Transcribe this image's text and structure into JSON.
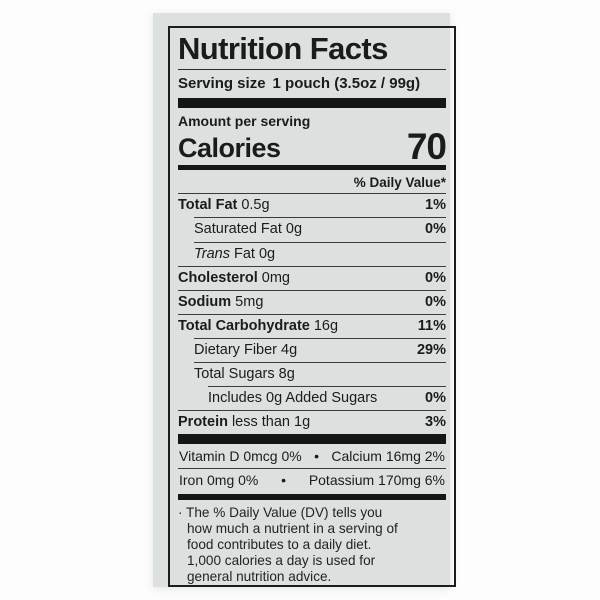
{
  "label": {
    "title": "Nutrition Facts",
    "serving": {
      "label": "Serving size",
      "value": "1 pouch (3.5oz / 99g)"
    },
    "amount_per_serving": "Amount per serving",
    "calories": {
      "label": "Calories",
      "value": "70"
    },
    "daily_value_header": "% Daily Value*",
    "nutrients": [
      {
        "bold": "Total Fat",
        "italic": "",
        "rest": "0.5g",
        "dv": "1%"
      },
      {
        "bold": "",
        "italic": "",
        "rest": "Saturated Fat 0g",
        "dv": "0%"
      },
      {
        "bold": "",
        "italic": "Trans",
        "rest": "Fat 0g",
        "dv": ""
      },
      {
        "bold": "Cholesterol",
        "italic": "",
        "rest": "0mg",
        "dv": "0%"
      },
      {
        "bold": "Sodium",
        "italic": "",
        "rest": "5mg",
        "dv": "0%"
      },
      {
        "bold": "Total Carbohydrate",
        "italic": "",
        "rest": "16g",
        "dv": "11%"
      },
      {
        "bold": "",
        "italic": "",
        "rest": "Dietary Fiber 4g",
        "dv": "29%"
      },
      {
        "bold": "",
        "italic": "",
        "rest": "Total Sugars 8g",
        "dv": ""
      },
      {
        "bold": "",
        "italic": "",
        "rest": "Includes 0g Added Sugars",
        "dv": "0%"
      },
      {
        "bold": "Protein",
        "italic": "",
        "rest": "less than 1g",
        "dv": "3%"
      }
    ],
    "micronutrients": [
      {
        "left": "Vitamin D 0mcg 0%",
        "bullet": "•",
        "right": "Calcium 16mg 2%"
      },
      {
        "left": "Iron 0mg 0%",
        "bullet": "•",
        "right": "Potassium 170mg 6%"
      }
    ],
    "footnote_lines": [
      "· The % Daily Value (DV) tells you",
      "how much a nutrient in a serving of",
      "food contributes to a daily diet.",
      "1,000 calories a day is used for",
      "general nutrition advice."
    ],
    "colors": {
      "label_background": "#dce1df",
      "ink": "#1b1b1b"
    }
  }
}
